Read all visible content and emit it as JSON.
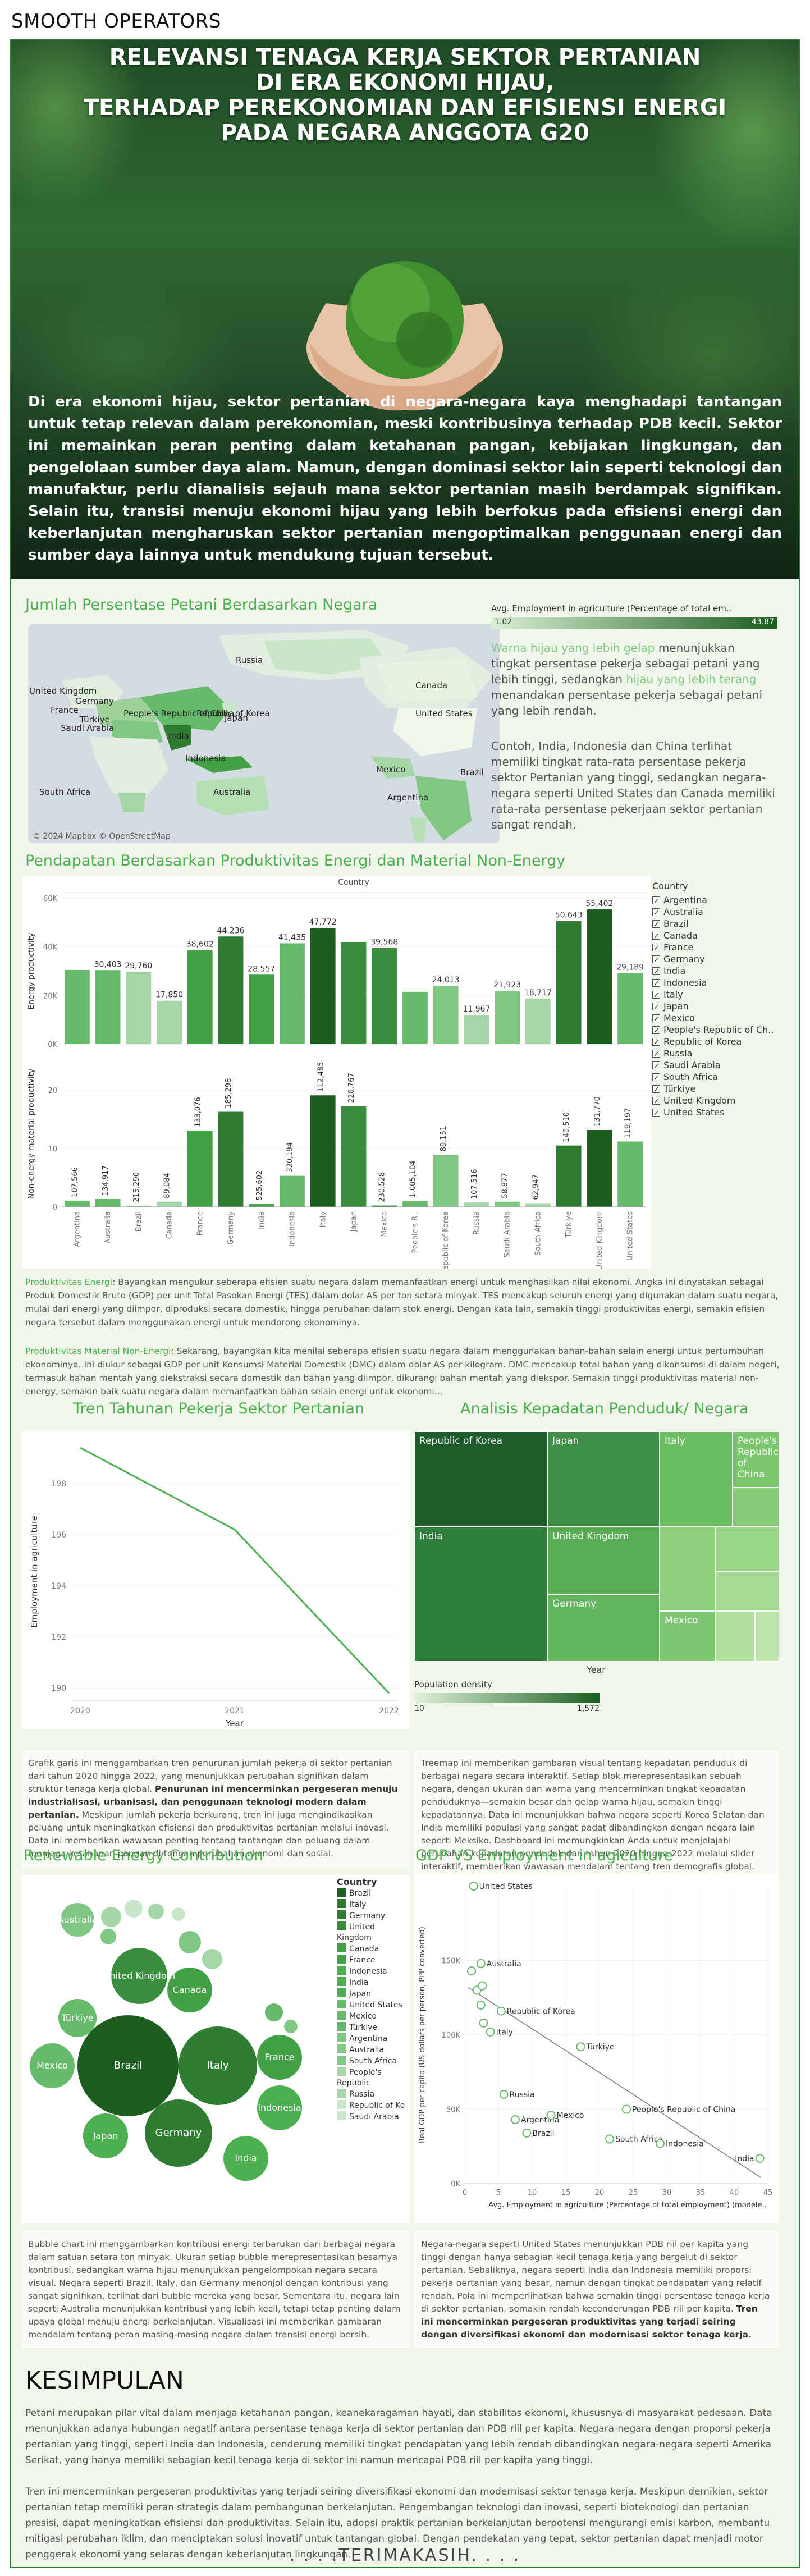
{
  "brand": "SMOOTH OPERATORS",
  "hero": {
    "title_lines": [
      "RELEVANSI TENAGA KERJA SEKTOR PERTANIAN",
      "DI ERA EKONOMI HIJAU,",
      "TERHADAP PEREKONOMIAN DAN EFISIENSI ENERGI",
      "PADA NEGARA ANGGOTA G20"
    ],
    "intro": "Di era ekonomi hijau, sektor pertanian di negara-negara kaya menghadapi tantangan untuk tetap relevan dalam perekonomian, meski kontribusinya terhadap PDB kecil. Sektor ini memainkan peran penting dalam ketahanan pangan, kebijakan lingkungan, dan pengelolaan sumber daya alam. Namun, dengan dominasi sektor lain seperti teknologi dan manufaktur, perlu dianalisis sejauh mana sektor pertanian masih berdampak signifikan. Selain itu, transisi menuju ekonomi hijau yang lebih berfokus pada efisiensi energi dan keberlanjutan mengharuskan sektor pertanian mengoptimalkan penggunaan energi dan sumber daya lainnya untuk mendukung tujuan tersebut."
  },
  "map_section": {
    "title": "Jumlah Persentase Petani Berdasarkan Negara",
    "legend_title": "Avg. Employment in agriculture (Percentage of total em..",
    "legend_min": "1.02",
    "legend_max": "43.87",
    "credit": "© 2024 Mapbox © OpenStreetMap",
    "labels": [
      "Russia",
      "Canada",
      "United Kingdom",
      "Germany",
      "France",
      "People's Republic of China",
      "Türkiye",
      "Saudi Arabia",
      "Republic of Korea",
      "Japan",
      "India",
      "Indonesia",
      "United States",
      "Mexico",
      "Brazil",
      "South Africa",
      "Australia",
      "Argentina"
    ],
    "desc1_hl1": "Warna hijau yang lebih gelap",
    "desc1_a": " menunjukkan tingkat persentase pekerja sebagai petani yang lebih tinggi, sedangkan ",
    "desc1_hl2": "hijau yang lebih terang",
    "desc1_b": " menandakan persentase pekerja sebagai petani yang lebih rendah.",
    "desc2": "Contoh, India, Indonesia dan China terlihat memiliki tingkat rata-rata persentase pekerja sektor Pertanian yang tinggi, sedangkan negara-negara seperti United States dan Canada memiliki rata-rata persentase pekerjaan sektor pertanian sangat rendah."
  },
  "productivity": {
    "title": "Pendapatan Berdasarkan Produktivitas Energi dan Material Non-Energy",
    "x_header": "Country",
    "y1_label": "Energy productivity",
    "y2_label": "Non-energy material productivity",
    "legend_title": "Country",
    "note1_label": "Produktivitas Energi",
    "note1": ": Bayangkan mengukur seberapa efisien suatu negara dalam memanfaatkan energi untuk menghasilkan nilai ekonomi. Angka ini dinyatakan sebagai Produk Domestik Bruto (GDP) per unit Total Pasokan Energi (TES) dalam dolar AS per ton setara minyak. TES mencakup seluruh energi yang digunakan dalam suatu negara, mulai dari energi yang diimpor, diproduksi secara domestik, hingga perubahan dalam stok energi. Dengan kata lain, semakin tinggi produktivitas energi, semakin efisien negara tersebut dalam menggunakan energi untuk mendorong ekonominya.",
    "note2_label": "Produktivitas Material Non-Energi",
    "note2": ": Sekarang, bayangkan kita menilai seberapa efisien suatu negara dalam menggunakan bahan-bahan selain energi untuk pertumbuhan ekonominya. Ini diukur sebagai GDP per unit Konsumsi Material Domestik (DMC) dalam dolar AS per kilogram. DMC mencakup total bahan yang dikonsumsi di dalam negeri, termasuk bahan mentah yang diekstraksi secara domestik dan bahan yang diimpor, dikurangi bahan mentah yang diekspor. Semakin tinggi produktivitas material non-energy, semakin baik suatu negara dalam memanfaatkan bahan selain energi untuk ekonomi..."
  },
  "trend": {
    "title": "Tren Tahunan Pekerja Sektor Pertanian",
    "ylabel": "Employment in agriculture",
    "xlabel": "Year",
    "desc_a": "Grafik garis ini menggambarkan tren penurunan jumlah pekerja di sektor pertanian dari tahun 2020 hingga 2022, yang menunjukkan perubahan signifikan dalam struktur tenaga kerja global. ",
    "desc_b": "Penurunan ini mencerminkan pergeseran menuju industrialisasi, urbanisasi, dan penggunaan teknologi modern dalam pertanian.",
    "desc_c": " Meskipun jumlah pekerja berkurang, tren ini juga mengindikasikan peluang untuk meningkatkan efisiensi dan produktivitas pertanian melalui inovasi. Data ini memberikan wawasan penting tentang tantangan dan peluang dalam menjaga ketahanan pangan di tengah perubahan ekonomi dan sosial."
  },
  "density": {
    "title": "Analisis Kepadatan Penduduk/ Negara",
    "tiles": [
      "Republic of Korea",
      "Japan",
      "Italy",
      "People's Republic of China",
      "United Kingdom",
      "India",
      "Germany",
      "Mexico"
    ],
    "xlabel": "Year",
    "legend_title": "Population density",
    "legend_min": "10",
    "legend_max": "1,572",
    "desc": "Treemap ini memberikan gambaran visual tentang kepadatan penduduk di berbagai negara secara interaktif. Setiap blok merepresentasikan sebuah negara, dengan ukuran dan warna yang mencerminkan tingkat kepadatan penduduknya—semakin besar dan gelap warna hijau, semakin tinggi kepadatannya. Data ini menunjukkan bahwa negara seperti Korea Selatan dan India memiliki populasi yang sangat padat dibandingkan dengan negara lain seperti Meksiko. Dashboard ini memungkinkan Anda untuk menjelajahi perubahan kepadatan penduduk dari tahun 2020 hingga 2022 melalui slider interaktif, memberikan wawasan mendalam tentang tren demografis global."
  },
  "renewable": {
    "title": "Renewable Energy Contribution",
    "legend_title": "Country",
    "bubble_labels": [
      "Australia",
      "United Kingdom",
      "Canada",
      "Türkiye",
      "Mexico",
      "Brazil",
      "Italy",
      "France",
      "Japan",
      "Germany",
      "Indonesia",
      "India"
    ],
    "desc_a": "Bubble chart ini menggambarkan kontribusi energi terbarukan dari berbagai negara dalam satuan setara ton minyak. Ukuran setiap bubble merepresentasikan besarnya kontribusi, sedangkan warna hijau menunjukkan pengelompokan negara secara visual. Negara seperti Brazil, Italy, dan Germany menonjol dengan kontribusi yang sangat signifikan, terlihat dari bubble mereka yang besar. Sementara itu, negara lain seperti Australia menunjukkan kontribusi yang lebih kecil, tetapi tetap penting dalam upaya global menuju energi berkelanjutan. Visualisasi ini memberikan gambaran mendalam tentang peran masing-masing negara dalam transisi energi bersih."
  },
  "gdp": {
    "title": "GDP VS Employment in agiculture",
    "ylabel": "Real GDP per capita (US dollars per person, PPP converted)",
    "xlabel": "Avg. Employment in agriculture (Percentage of total employment) (modele..",
    "desc_a": "Negara-negara seperti United States menunjukkan PDB riil per kapita yang tinggi dengan hanya sebagian kecil tenaga kerja yang bergelut di sektor pertanian. Sebaliknya, negara seperti India dan Indonesia memiliki proporsi pekerja pertanian yang besar, namun dengan tingkat pendapatan yang relatif rendah. Pola ini memperlihatkan bahwa semakin tinggi persentase tenaga kerja di sektor pertanian, semakin rendah kecenderungan PDB riil per kapita. ",
    "desc_b": "Tren ini mencerminkan pergeseran produktivitas yang terjadi seiring dengan diversifikasi ekonomi dan modernisasi sektor tenaga kerja."
  },
  "conclusion": {
    "title": "KESIMPULAN",
    "p1": "Petani merupakan pilar vital dalam menjaga ketahanan pangan, keanekaragaman hayati, dan stabilitas ekonomi, khususnya di masyarakat pedesaan. Data menunjukkan adanya hubungan negatif antara persentase tenaga kerja di sektor pertanian dan PDB riil per kapita. Negara-negara dengan proporsi pekerja pertanian yang tinggi, seperti India dan Indonesia, cenderung memiliki tingkat pendapatan yang lebih rendah dibandingkan negara-negara seperti Amerika Serikat, yang hanya memiliki sebagian kecil tenaga kerja di sektor ini namun mencapai PDB riil per kapita yang tinggi.",
    "p2": "Tren ini mencerminkan pergeseran produktivitas yang terjadi seiring diversifikasi ekonomi dan modernisasi sektor tenaga kerja. Meskipun demikian, sektor pertanian tetap memiliki peran strategis dalam pembangunan berkelanjutan. Pengembangan teknologi dan inovasi, seperti bioteknologi dan pertanian presisi, dapat meningkatkan efisiensi dan produktivitas. Selain itu, adopsi praktik pertanian berkelanjutan berpotensi mengurangi emisi karbon, membantu mitigasi perubahan iklim, dan menciptakan solusi inovatif untuk tantangan global. Dengan pendekatan yang tepat, sektor pertanian dapat menjadi motor penggerak ekonomi yang selaras dengan keberlanjutan lingkungan.",
    "thanks": ". . . .TERIMAKASIH. . . ."
  },
  "chart_data": [
    {
      "type": "bar",
      "title": "",
      "ylabel": "Energy productivity",
      "ylim": [
        0,
        60000
      ],
      "yticks": [
        "0K",
        "20K",
        "40K",
        "60K"
      ],
      "categories": [
        "Argentina",
        "Australia",
        "Brazil",
        "Canada",
        "France",
        "Germany",
        "India",
        "Indonesia",
        "Italy",
        "Japan",
        "Mexico",
        "People's Republic of China",
        "Republic of Korea",
        "Russia",
        "Saudi Arabia",
        "South Africa",
        "Türkiye",
        "United Kingdom",
        "United States"
      ],
      "x_tick_labels": [
        "Argentina",
        "Australia",
        "Brazil",
        "Canada",
        "France",
        "Germany",
        "India",
        "Indonesia",
        "Italy",
        "Japan",
        "Mexico",
        "People's R..",
        "Republic of Korea",
        "Russia",
        "Saudi Arabia",
        "South Africa",
        "Türkiye",
        "United Kingdom",
        "United States"
      ],
      "values": [
        30500,
        30403,
        29760,
        17850,
        38602,
        44236,
        28557,
        41435,
        47772,
        42000,
        39568,
        21500,
        24013,
        11967,
        21923,
        18717,
        50643,
        55402,
        29189
      ],
      "labels": [
        "",
        "30,403",
        "29,760",
        "17,850",
        "38,602",
        "44,236",
        "28,557",
        "41,435",
        "47,772",
        "",
        "39,568",
        "",
        "24,013",
        "11,967",
        "21,923",
        "18,717",
        "50,643",
        "55,402",
        "29,189"
      ],
      "colors": [
        "#66bb6a",
        "#66bb6a",
        "#a5d6a7",
        "#a5d6a7",
        "#43a047",
        "#2e7d32",
        "#43a047",
        "#66bb6a",
        "#1b5e20",
        "#388e3c",
        "#388e3c",
        "#66bb6a",
        "#81c784",
        "#a5d6a7",
        "#81c784",
        "#a5d6a7",
        "#2e7d32",
        "#1b5e20",
        "#66bb6a"
      ]
    },
    {
      "type": "bar",
      "title": "",
      "ylabel": "Non-energy material productivity",
      "ylim": [
        0,
        25
      ],
      "yticks": [
        "0",
        "10",
        "20"
      ],
      "categories": [
        "Argentina",
        "Australia",
        "Brazil",
        "Canada",
        "France",
        "Germany",
        "India",
        "Indonesia",
        "Italy",
        "Japan",
        "Mexico",
        "People's Republic of China",
        "Republic of Korea",
        "Russia",
        "Saudi Arabia",
        "South Africa",
        "Türkiye",
        "United Kingdom",
        "United States"
      ],
      "values": [
        1.07566,
        1.34917,
        0.21529,
        0.89084,
        13.076,
        16.298,
        0.525602,
        5.320194,
        19.112485,
        17.220767,
        0.230528,
        1.005104,
        8.9151,
        0.7516,
        0.8877,
        0.62947,
        10.51,
        13.177,
        11.19197
      ],
      "labels": [
        "107,566",
        "134,917",
        "215,290",
        "89,084",
        "133,076",
        "185,298",
        "525,602",
        "320,194",
        "112,485",
        "220,767",
        "230,528",
        "1,005,104",
        "89,151",
        "107,516",
        "58,877",
        "62,947",
        "140,510",
        "131,770",
        "119,197"
      ],
      "colors": [
        "#66bb6a",
        "#66bb6a",
        "#a5d6a7",
        "#a5d6a7",
        "#43a047",
        "#2e7d32",
        "#43a047",
        "#66bb6a",
        "#1b5e20",
        "#388e3c",
        "#388e3c",
        "#66bb6a",
        "#81c784",
        "#a5d6a7",
        "#81c784",
        "#a5d6a7",
        "#2e7d32",
        "#1b5e20",
        "#66bb6a"
      ]
    },
    {
      "type": "line",
      "title": "",
      "xlabel": "Year",
      "ylabel": "Employment in agriculture",
      "x": [
        2020,
        2021,
        2022
      ],
      "values": [
        199.4,
        196.2,
        189.8
      ],
      "xticks": [
        "2020",
        "2021",
        "2022"
      ],
      "yticks": [
        "190",
        "192",
        "194",
        "196",
        "198"
      ],
      "ylim": [
        189.5,
        199.6
      ]
    },
    {
      "type": "scatter",
      "title": "",
      "xlabel": "Avg. Employment in agriculture (Percentage of total employment) (modele..",
      "ylabel": "Real GDP per capita (US dollars per person, PPP converted)",
      "xlim": [
        0,
        45
      ],
      "ylim": [
        0,
        200000
      ],
      "xticks": [
        "0",
        "5",
        "10",
        "15",
        "20",
        "25",
        "30",
        "35",
        "40",
        "45"
      ],
      "yticks": [
        "0K",
        "50K",
        "100K",
        "150K"
      ],
      "points": [
        {
          "label": "United States",
          "x": 1.3,
          "y": 200000
        },
        {
          "label": "Australia",
          "x": 2.4,
          "y": 148000
        },
        {
          "label": "",
          "x": 1.0,
          "y": 143000
        },
        {
          "label": "",
          "x": 1.8,
          "y": 130000
        },
        {
          "label": "",
          "x": 2.6,
          "y": 133000
        },
        {
          "label": "",
          "x": 2.4,
          "y": 120000
        },
        {
          "label": "Republic of Korea",
          "x": 5.4,
          "y": 116000
        },
        {
          "label": "Italy",
          "x": 3.8,
          "y": 102000
        },
        {
          "label": "",
          "x": 2.8,
          "y": 108000
        },
        {
          "label": "Türkiye",
          "x": 17.2,
          "y": 92000
        },
        {
          "label": "Russia",
          "x": 5.8,
          "y": 60000
        },
        {
          "label": "Argentina",
          "x": 7.5,
          "y": 43000
        },
        {
          "label": "Mexico",
          "x": 12.8,
          "y": 46000
        },
        {
          "label": "Brazil",
          "x": 9.2,
          "y": 34000
        },
        {
          "label": "People's Republic of China",
          "x": 24.0,
          "y": 50000
        },
        {
          "label": "South Africa",
          "x": 21.5,
          "y": 30000
        },
        {
          "label": "Indonesia",
          "x": 29.0,
          "y": 27000
        },
        {
          "label": "India",
          "x": 43.8,
          "y": 17000
        }
      ]
    }
  ],
  "country_legend": [
    "Argentina",
    "Australia",
    "Brazil",
    "Canada",
    "France",
    "Germany",
    "India",
    "Indonesia",
    "Italy",
    "Japan",
    "Mexico",
    "People's Republic of Ch..",
    "Republic of Korea",
    "Russia",
    "Saudi Arabia",
    "South Africa",
    "Türkiye",
    "United Kingdom",
    "United States"
  ],
  "renewable_legend": [
    {
      "label": "Brazil",
      "color": "#1b5e20"
    },
    {
      "label": "Italy",
      "color": "#2e7d32"
    },
    {
      "label": "Germany",
      "color": "#2e7d32"
    },
    {
      "label": "United Kingdom",
      "color": "#388e3c"
    },
    {
      "label": "Canada",
      "color": "#43a047"
    },
    {
      "label": "France",
      "color": "#43a047"
    },
    {
      "label": "Indonesia",
      "color": "#4caf50"
    },
    {
      "label": "India",
      "color": "#4caf50"
    },
    {
      "label": "Japan",
      "color": "#4caf50"
    },
    {
      "label": "United States",
      "color": "#66bb6a"
    },
    {
      "label": "Mexico",
      "color": "#66bb6a"
    },
    {
      "label": "Türkiye",
      "color": "#66bb6a"
    },
    {
      "label": "Argentina",
      "color": "#81c784"
    },
    {
      "label": "Australia",
      "color": "#81c784"
    },
    {
      "label": "South Africa",
      "color": "#81c784"
    },
    {
      "label": "People's Republic",
      "color": "#a5d6a7"
    },
    {
      "label": "Russia",
      "color": "#a5d6a7"
    },
    {
      "label": "Republic of Ko",
      "color": "#c8e6c9"
    },
    {
      "label": "Saudi Arabia",
      "color": "#c8e6c9"
    }
  ]
}
